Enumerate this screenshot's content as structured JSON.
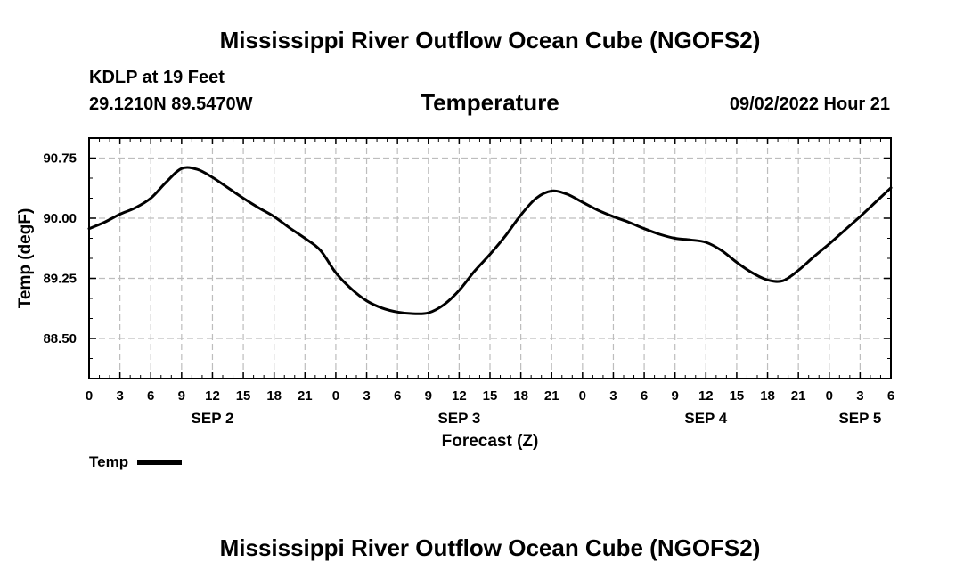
{
  "header": {
    "title": "Mississippi River Outflow Ocean Cube (NGOFS2)",
    "station": "KDLP at 19 Feet",
    "coordinates": "29.1210N  89.5470W",
    "subtitle": "Temperature",
    "timestamp": "09/02/2022 Hour 21"
  },
  "footer": {
    "title": "Mississippi River Outflow Ocean Cube (NGOFS2)"
  },
  "legend": {
    "label": "Temp"
  },
  "chart_data": {
    "type": "line",
    "title": "Temperature",
    "xlabel": "Forecast (Z)",
    "ylabel": "Temp (degF)",
    "x_range_hours": [
      0,
      78
    ],
    "ylim": [
      88.0,
      91.0
    ],
    "x_tick_labels": [
      "0",
      "3",
      "6",
      "9",
      "12",
      "15",
      "18",
      "21",
      "0",
      "3",
      "6",
      "9",
      "12",
      "15",
      "18",
      "21",
      "0",
      "3",
      "6",
      "9",
      "12",
      "15",
      "18",
      "21",
      "0",
      "3",
      "6"
    ],
    "day_labels": [
      {
        "label": "SEP 2",
        "hour": 12
      },
      {
        "label": "SEP 3",
        "hour": 36
      },
      {
        "label": "SEP 4",
        "hour": 60
      },
      {
        "label": "SEP 5",
        "hour": 75
      }
    ],
    "y_ticks": [
      88.5,
      89.25,
      90.0,
      90.75
    ],
    "y_tick_labels": [
      "88.50",
      "89.25",
      "90.00",
      "90.75"
    ],
    "grid": true,
    "series": [
      {
        "name": "Temp",
        "color": "#000000",
        "x_hours": [
          0,
          1.5,
          3,
          4.5,
          6,
          7.5,
          9,
          10.5,
          12,
          13.5,
          15,
          16.5,
          18,
          19.5,
          21,
          22.5,
          24,
          25.5,
          27,
          28.5,
          30,
          31.5,
          33,
          34.5,
          36,
          37.5,
          39,
          40.5,
          42,
          43.5,
          45,
          46.5,
          48,
          49.5,
          51,
          52.5,
          54,
          55.5,
          57,
          58.5,
          60,
          61.5,
          63,
          64.5,
          66,
          67.5,
          69,
          70.5,
          72,
          73.5,
          75,
          76.5,
          78
        ],
        "values": [
          89.87,
          89.95,
          90.05,
          90.13,
          90.25,
          90.45,
          90.62,
          90.61,
          90.51,
          90.38,
          90.25,
          90.13,
          90.02,
          89.88,
          89.75,
          89.6,
          89.32,
          89.12,
          88.97,
          88.88,
          88.83,
          88.81,
          88.82,
          88.92,
          89.1,
          89.34,
          89.55,
          89.78,
          90.04,
          90.25,
          90.34,
          90.3,
          90.2,
          90.1,
          90.02,
          89.95,
          89.87,
          89.8,
          89.75,
          89.73,
          89.7,
          89.6,
          89.45,
          89.32,
          89.23,
          89.22,
          89.35,
          89.52,
          89.68,
          89.85,
          90.02,
          90.2,
          90.38
        ]
      }
    ]
  }
}
